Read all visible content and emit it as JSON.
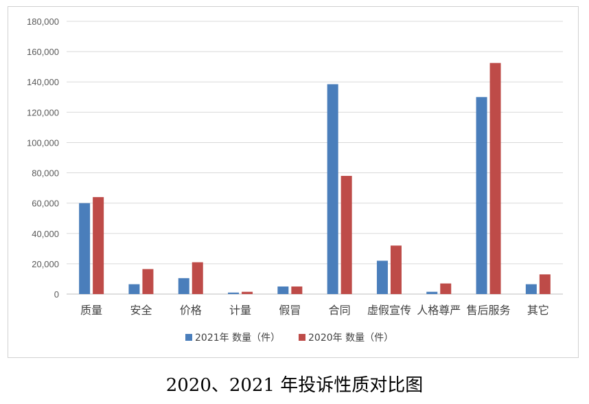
{
  "caption": "2020、2021 年投诉性质对比图",
  "chart_data": {
    "type": "bar",
    "categories": [
      "质量",
      "安全",
      "价格",
      "计量",
      "假冒",
      "合同",
      "虚假宣传",
      "人格尊严",
      "售后服务",
      "其它"
    ],
    "series": [
      {
        "name": "2021年 数量（件）",
        "color": "#4a7ebb",
        "values": [
          60000,
          6500,
          10500,
          1000,
          5000,
          138500,
          22000,
          1500,
          130000,
          6500
        ]
      },
      {
        "name": "2020年 数量（件）",
        "color": "#be4b48",
        "values": [
          64000,
          16500,
          21000,
          1500,
          5000,
          78000,
          32000,
          7000,
          152500,
          13000
        ]
      }
    ],
    "ylim": [
      0,
      180000
    ],
    "yticks": [
      "0",
      "20,000",
      "40,000",
      "60,000",
      "80,000",
      "100,000",
      "120,000",
      "140,000",
      "160,000",
      "180,000"
    ],
    "grid": true,
    "legend_position": "bottom"
  }
}
